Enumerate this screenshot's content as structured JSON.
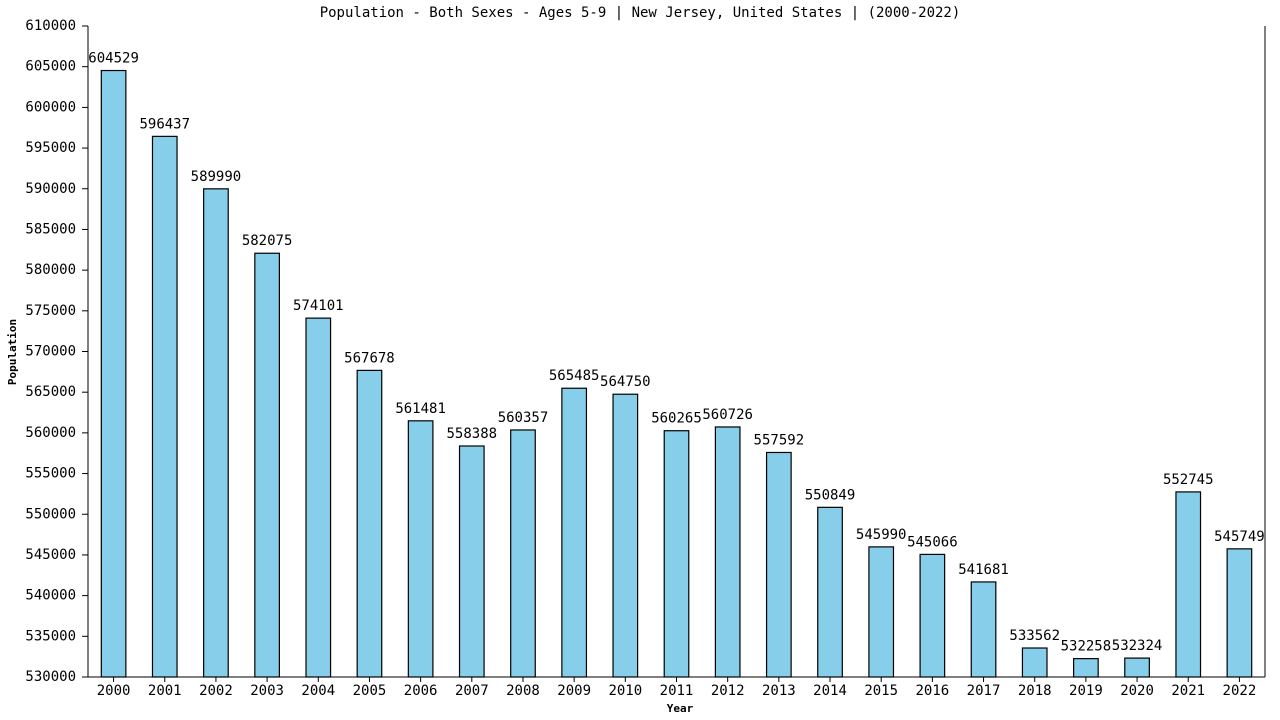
{
  "chart_data": {
    "type": "bar",
    "title": "Population - Both Sexes - Ages 5-9 | New Jersey, United States |  (2000-2022)",
    "x_label": "Year",
    "y_label": "Population",
    "categories": [
      "2000",
      "2001",
      "2002",
      "2003",
      "2004",
      "2005",
      "2006",
      "2007",
      "2008",
      "2009",
      "2010",
      "2011",
      "2012",
      "2013",
      "2014",
      "2015",
      "2016",
      "2017",
      "2018",
      "2019",
      "2020",
      "2021",
      "2022"
    ],
    "values": [
      604529,
      596437,
      589990,
      582075,
      574101,
      567678,
      561481,
      558388,
      560357,
      565485,
      564750,
      560265,
      560726,
      557592,
      550849,
      545990,
      545066,
      541681,
      533562,
      532258,
      532324,
      552745,
      545749
    ],
    "color": "#87ceeb",
    "ylim": [
      530000,
      610000
    ],
    "yticks": [
      530000,
      535000,
      540000,
      545000,
      550000,
      555000,
      560000,
      565000,
      570000,
      575000,
      580000,
      585000,
      590000,
      595000,
      600000,
      605000,
      610000
    ],
    "grid": false
  }
}
